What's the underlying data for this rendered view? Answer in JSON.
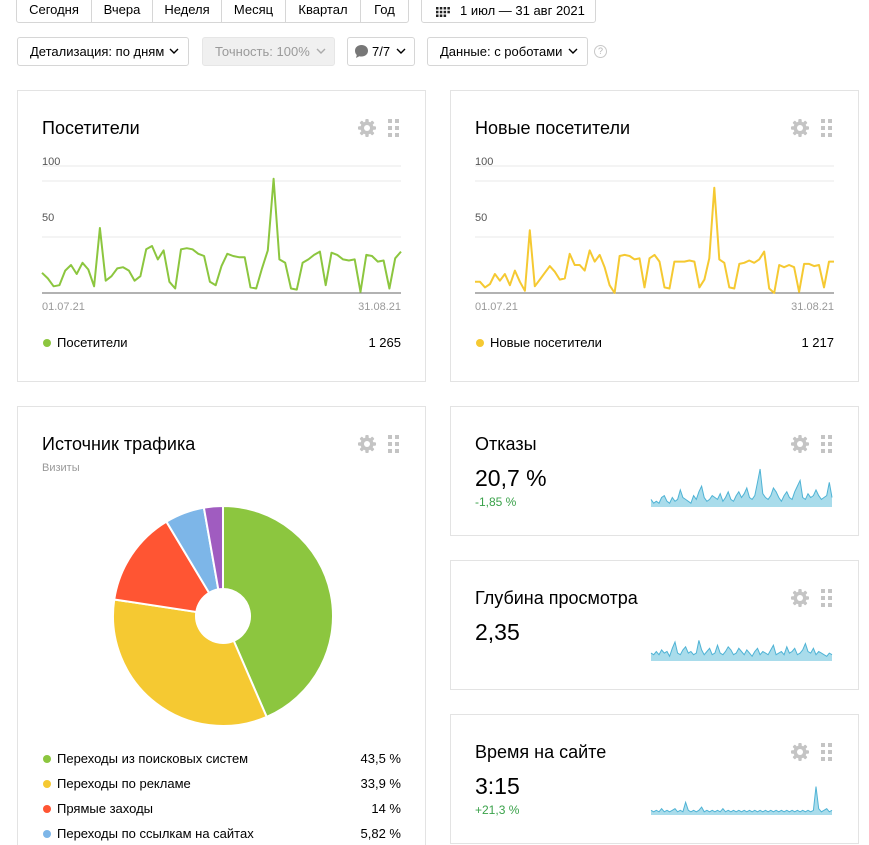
{
  "period_buttons": [
    {
      "label": "Сегодня",
      "w": 75
    },
    {
      "label": "Вчера",
      "w": 61
    },
    {
      "label": "Неделя",
      "w": 69
    },
    {
      "label": "Месяц",
      "w": 64
    },
    {
      "label": "Квартал",
      "w": 75
    },
    {
      "label": "Год",
      "w": 47
    }
  ],
  "date_range": "1 июл — 31 авг 2021",
  "filters": {
    "detail": "Детализация: по дням",
    "accuracy": "Точность: 100%",
    "segments": "7/7",
    "data": "Данные: с роботами",
    "help": "?"
  },
  "colors": {
    "green": "#8cc63f",
    "yellow": "#f5c932",
    "red": "#ff5533",
    "blue": "#7db6e8",
    "purple": "#a05cc0",
    "spark_fill": "#a9dceb",
    "spark_line": "#4fb3d5",
    "delta_green": "#3aa24a"
  },
  "visitors_card": {
    "title": "Посетители",
    "legend_label": "Посетители",
    "total": "1 265",
    "x_start": "01.07.21",
    "x_end": "31.08.21",
    "y_ticks": [
      "100",
      "50"
    ]
  },
  "new_visitors_card": {
    "title": "Новые посетители",
    "legend_label": "Новые посетители",
    "total": "1 217",
    "x_start": "01.07.21",
    "x_end": "31.08.21",
    "y_ticks": [
      "100",
      "50"
    ]
  },
  "traffic_card": {
    "title": "Источник трафика",
    "subtitle": "Визиты",
    "legend": [
      {
        "name": "Переходы из поисковых систем",
        "value": "43,5 %"
      },
      {
        "name": "Переходы по рекламе",
        "value": "33,9 %"
      },
      {
        "name": "Прямые заходы",
        "value": "14 %"
      },
      {
        "name": "Переходы по ссылкам на сайтах",
        "value": "5,82 %"
      }
    ]
  },
  "bounce_card": {
    "title": "Отказы",
    "value": "20,7 %",
    "delta": "-1,85 %"
  },
  "depth_card": {
    "title": "Глубина просмотра",
    "value": "2,35"
  },
  "time_card": {
    "title": "Время на сайте",
    "value": "3:15",
    "delta": "+21,3 %"
  },
  "chart_data": [
    {
      "type": "line",
      "title": "Посетители",
      "series": [
        {
          "name": "Посетители",
          "values": [
            18,
            13,
            6,
            7,
            20,
            25,
            17,
            27,
            21,
            6,
            58,
            11,
            15,
            22,
            23,
            20,
            11,
            15,
            39,
            42,
            30,
            38,
            10,
            4,
            39,
            40,
            39,
            35,
            33,
            10,
            7,
            24,
            35,
            33,
            32,
            32,
            5,
            4,
            22,
            38,
            102,
            30,
            27,
            4,
            3,
            27,
            30,
            34,
            37,
            7,
            36,
            34,
            30,
            29,
            30,
            1,
            34,
            33,
            28,
            29,
            4,
            31,
            37
          ]
        }
      ],
      "x_start": "01.07.21",
      "x_end": "31.08.21",
      "ylim": [
        0,
        100
      ]
    },
    {
      "type": "line",
      "title": "Новые посетители",
      "series": [
        {
          "name": "Новые посетители",
          "values": [
            10,
            10,
            5,
            8,
            17,
            11,
            17,
            7,
            20,
            10,
            2,
            56,
            6,
            12,
            18,
            24,
            19,
            12,
            13,
            35,
            25,
            25,
            20,
            38,
            28,
            34,
            23,
            7,
            0,
            33,
            34,
            33,
            30,
            31,
            5,
            31,
            34,
            28,
            5,
            4,
            28,
            28,
            28,
            29,
            28,
            5,
            12,
            31,
            94,
            30,
            27,
            5,
            4,
            26,
            27,
            29,
            27,
            30,
            37,
            4,
            0,
            25,
            23,
            25,
            23,
            1,
            26,
            26,
            24,
            25,
            5,
            28,
            28
          ]
        }
      ],
      "x_start": "01.07.21",
      "x_end": "31.08.21",
      "ylim": [
        0,
        100
      ]
    },
    {
      "type": "pie",
      "title": "Источник трафика",
      "categories": [
        "Переходы из поисковых систем",
        "Переходы по рекламе",
        "Прямые заходы",
        "Переходы по ссылкам на сайтах",
        ""
      ],
      "values": [
        43.5,
        33.9,
        14,
        5.82,
        2.78
      ]
    },
    {
      "type": "area",
      "title": "Отказы",
      "values": [
        4,
        2,
        3,
        2,
        5,
        6,
        3,
        2,
        5,
        3,
        4,
        9,
        5,
        4,
        3,
        2,
        6,
        4,
        8,
        11,
        5,
        3,
        4,
        6,
        5,
        4,
        7,
        3,
        5,
        8,
        4,
        3,
        6,
        8,
        5,
        7,
        10,
        5,
        4,
        6,
        13,
        20,
        7,
        5,
        4,
        6,
        10,
        8,
        5,
        3,
        6,
        8,
        5,
        4,
        8,
        11,
        14,
        5,
        4,
        7,
        5,
        6,
        9,
        6,
        4,
        5,
        6,
        13,
        5
      ]
    },
    {
      "type": "area",
      "title": "Глубина просмотра",
      "values": [
        5,
        4,
        6,
        4,
        7,
        5,
        6,
        3,
        8,
        12,
        5,
        4,
        7,
        9,
        5,
        6,
        4,
        5,
        13,
        7,
        4,
        6,
        8,
        4,
        5,
        10,
        5,
        4,
        6,
        9,
        7,
        4,
        5,
        8,
        6,
        4,
        7,
        5,
        3,
        6,
        8,
        4,
        6,
        5,
        4,
        7,
        10,
        4,
        5,
        6,
        4,
        9,
        5,
        6,
        8,
        4,
        5,
        7,
        11,
        6,
        5,
        8,
        4,
        6,
        5,
        4,
        3,
        5,
        4
      ]
    },
    {
      "type": "area",
      "title": "Время на сайте",
      "values": [
        3,
        2,
        3,
        2,
        4,
        2,
        3,
        2,
        3,
        4,
        2,
        3,
        2,
        8,
        3,
        2,
        3,
        2,
        3,
        5,
        2,
        3,
        2,
        3,
        2,
        3,
        2,
        4,
        2,
        3,
        2,
        3,
        2,
        3,
        2,
        3,
        2,
        3,
        2,
        3,
        2,
        3,
        2,
        3,
        2,
        3,
        2,
        3,
        2,
        3,
        2,
        3,
        2,
        3,
        2,
        3,
        2,
        3,
        2,
        3,
        2,
        3,
        18,
        4,
        2,
        3,
        4,
        2,
        3
      ]
    }
  ]
}
